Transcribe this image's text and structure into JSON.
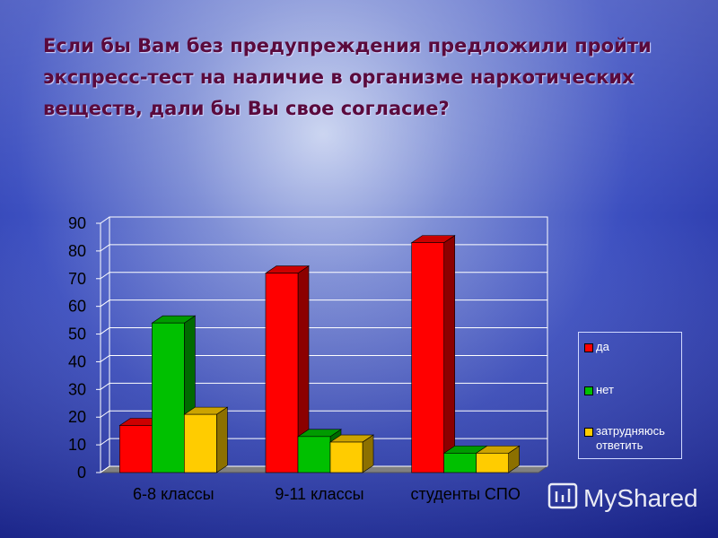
{
  "chart_data": {
    "type": "bar3d",
    "title": "Если бы Вам без предупреждения предложили пройти экспресс-тест на наличие в организме наркотических веществ, дали бы Вы свое согласие?",
    "categories": [
      "6-8 классы",
      "9-11 классы",
      "студенты СПО"
    ],
    "series": [
      {
        "name": "да",
        "color": "#ff0000",
        "values": [
          17,
          72,
          83
        ]
      },
      {
        "name": "нет",
        "color": "#00c000",
        "values": [
          54,
          13,
          7
        ]
      },
      {
        "name": "затрудняюсь ответить",
        "color": "#ffcc00",
        "values": [
          21,
          11,
          7
        ]
      }
    ],
    "ylim": [
      0,
      90
    ],
    "yticks": [
      0,
      10,
      20,
      30,
      40,
      50,
      60,
      70,
      80,
      90
    ],
    "grid": true,
    "legend": "right",
    "watermark": "MyShared"
  }
}
